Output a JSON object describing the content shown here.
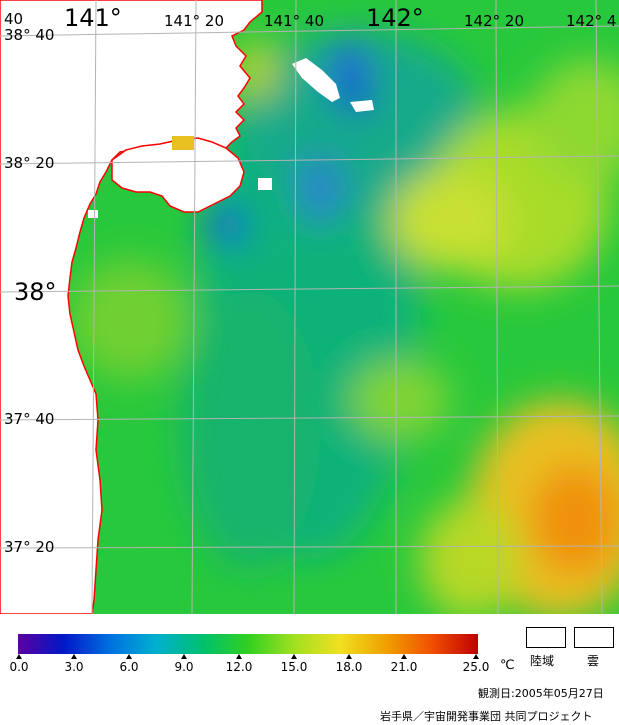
{
  "map": {
    "lon_labels": [
      "141°",
      "141° 20",
      "141° 40",
      "142°",
      "142° 20",
      "142° 4"
    ],
    "lat_labels": [
      "38° 40",
      "38° 20",
      "38°",
      "37° 40",
      "37° 20"
    ],
    "corner_label": "40",
    "colors": {
      "land": "#ffffff",
      "coast": "#ff0000",
      "grid": "#b4b4b4"
    }
  },
  "colorbar": {
    "ticks": [
      "0.0",
      "3.0",
      "6.0",
      "9.0",
      "12.0",
      "15.0",
      "18.0",
      "21.0",
      "25.0"
    ],
    "unit": "℃",
    "stops": [
      "#5a00a0",
      "#0018c8",
      "#0070e0",
      "#00b0d0",
      "#00c070",
      "#30d020",
      "#a0e020",
      "#f0e020",
      "#f0a000",
      "#f05000",
      "#c00000"
    ]
  },
  "legend": {
    "land_label": "陸域",
    "cloud_label": "雲"
  },
  "footer": {
    "observation_date": "観測日:2005年05月27日",
    "credit": "岩手県／宇宙開発事業団 共同プロジェクト"
  }
}
